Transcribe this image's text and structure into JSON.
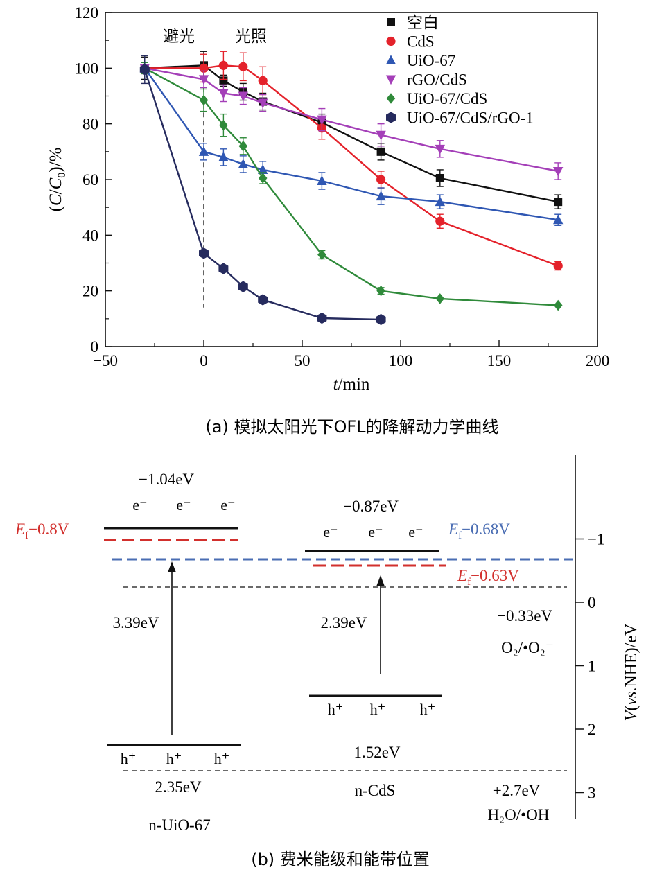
{
  "panel_a": {
    "caption": "(a) 模拟太阳光下OFL的降解动力学曲线",
    "annotations": {
      "dark": "避光",
      "light": "光照"
    }
  },
  "chart_data": {
    "type": "line",
    "title": "",
    "xlabel": "t/min",
    "ylabel": "(C/C0)/%",
    "xlim": [
      -50,
      200
    ],
    "ylim": [
      0,
      120
    ],
    "xticks": [
      -50,
      0,
      50,
      100,
      150,
      200
    ],
    "yticks": [
      0,
      20,
      40,
      60,
      80,
      100,
      120
    ],
    "xtick_labels": [
      "−50",
      "0",
      "50",
      "100",
      "150",
      "200"
    ],
    "ytick_labels": [
      "0",
      "20",
      "40",
      "60",
      "80",
      "100",
      "120"
    ],
    "divider_x": 0,
    "legend_position": "top-right",
    "series": [
      {
        "name": "空白",
        "color": "#111111",
        "marker": "square",
        "x": [
          -30,
          0,
          10,
          20,
          30,
          60,
          90,
          120,
          180
        ],
        "values": [
          100,
          101,
          95.5,
          91.5,
          88,
          80.5,
          70,
          60.5,
          52
        ],
        "errors": [
          4,
          5,
          2,
          3,
          3,
          3,
          3,
          3,
          2.5
        ]
      },
      {
        "name": "CdS",
        "color": "#e4222b",
        "marker": "circle",
        "x": [
          -30,
          0,
          10,
          20,
          30,
          60,
          90,
          120,
          180
        ],
        "values": [
          100,
          100,
          101,
          100.5,
          95.5,
          78.5,
          60,
          45,
          29
        ],
        "errors": [
          2,
          5,
          5,
          5,
          5,
          4,
          3,
          2.5,
          1.5
        ]
      },
      {
        "name": "UiO-67",
        "color": "#2f57b3",
        "marker": "triangle-up",
        "x": [
          -30,
          0,
          10,
          20,
          30,
          60,
          90,
          120,
          180
        ],
        "values": [
          100,
          70,
          68,
          65.5,
          63.5,
          59.5,
          54,
          52,
          45.5
        ],
        "errors": [
          2,
          3,
          3,
          3,
          3,
          3,
          3,
          2.5,
          2
        ]
      },
      {
        "name": "rGO/CdS",
        "color": "#a43fb8",
        "marker": "triangle-down",
        "x": [
          -30,
          0,
          10,
          20,
          30,
          60,
          90,
          120,
          180
        ],
        "values": [
          100,
          96,
          91,
          90,
          87.5,
          81.5,
          76,
          71,
          63
        ],
        "errors": [
          2,
          3,
          3,
          3,
          3,
          4,
          4,
          3,
          3
        ]
      },
      {
        "name": "UiO-67/CdS",
        "color": "#2f8a3a",
        "marker": "diamond",
        "x": [
          -30,
          0,
          10,
          20,
          30,
          60,
          90,
          120,
          180
        ],
        "values": [
          100,
          88.5,
          79.5,
          72,
          60.5,
          33,
          20,
          17.2,
          14.8
        ],
        "errors": [
          2,
          4,
          4,
          3,
          2,
          1.5,
          1.2,
          0,
          0
        ]
      },
      {
        "name": "UiO-67/CdS/rGO-1",
        "color": "#262b5e",
        "marker": "hexagon",
        "x": [
          -30,
          0,
          10,
          20,
          30,
          60,
          90
        ],
        "values": [
          99.5,
          33.5,
          28,
          21.5,
          16.8,
          10.2,
          9.7
        ],
        "errors": [
          5,
          0,
          0,
          0,
          0,
          0,
          0
        ]
      }
    ]
  },
  "panel_b": {
    "caption": "(b) 费米能级和能带位置",
    "axis_label": "V(vs.NHE)/eV",
    "axis_ticks": [
      -1,
      0,
      1,
      2,
      3
    ],
    "axis_tick_labels": [
      "−1",
      "0",
      "1",
      "2",
      "3"
    ],
    "uio": {
      "name": "n-UiO-67",
      "cb_label": "−1.04eV",
      "vb_label": "2.35eV",
      "gap_label": "3.39eV",
      "fermi_label": "−0.8V",
      "fermi_symbol": "E",
      "fermi_sub": "f",
      "electron": "e⁻",
      "hole": "h⁺"
    },
    "cds": {
      "name": "n-CdS",
      "cb_label": "−0.87eV",
      "vb_label": "1.52eV",
      "gap_label": "2.39eV",
      "fermi_label": "−0.63V",
      "fermi_symbol": "E",
      "fermi_sub": "f",
      "electron": "e⁻",
      "hole": "h⁺"
    },
    "combined_fermi_label": "−0.68V",
    "redox_top": {
      "potential": "−0.33eV",
      "couple": "O₂/•O₂⁻"
    },
    "redox_bottom": {
      "potential": "+2.7eV",
      "couple": "H₂O/•OH"
    },
    "colors": {
      "red": "#d2302d",
      "blue": "#4a6db3",
      "black": "#111111"
    }
  }
}
